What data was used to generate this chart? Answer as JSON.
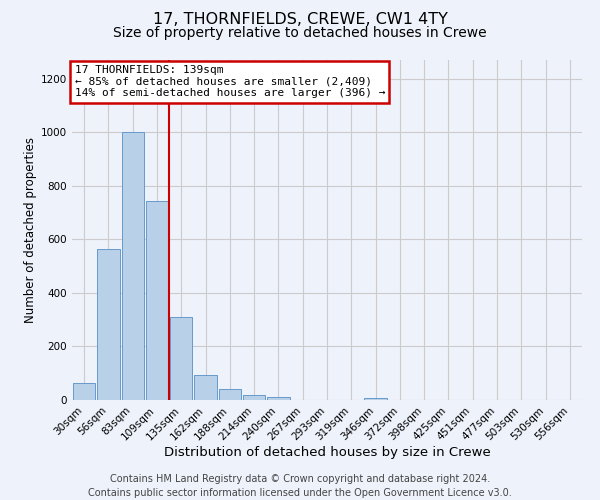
{
  "title": "17, THORNFIELDS, CREWE, CW1 4TY",
  "subtitle": "Size of property relative to detached houses in Crewe",
  "xlabel": "Distribution of detached houses by size in Crewe",
  "ylabel": "Number of detached properties",
  "footer_line1": "Contains HM Land Registry data © Crown copyright and database right 2024.",
  "footer_line2": "Contains public sector information licensed under the Open Government Licence v3.0.",
  "bar_labels": [
    "30sqm",
    "56sqm",
    "83sqm",
    "109sqm",
    "135sqm",
    "162sqm",
    "188sqm",
    "214sqm",
    "240sqm",
    "267sqm",
    "293sqm",
    "319sqm",
    "346sqm",
    "372sqm",
    "398sqm",
    "425sqm",
    "451sqm",
    "477sqm",
    "503sqm",
    "530sqm",
    "556sqm"
  ],
  "bar_values": [
    65,
    565,
    1000,
    745,
    310,
    95,
    40,
    20,
    10,
    0,
    0,
    0,
    8,
    0,
    0,
    0,
    0,
    0,
    0,
    0,
    0
  ],
  "bar_color": "#b8d0e8",
  "bar_edgecolor": "#6699cc",
  "vline_color": "#cc0000",
  "vline_index": 3.5,
  "annotation_box_text": "17 THORNFIELDS: 139sqm\n← 85% of detached houses are smaller (2,409)\n14% of semi-detached houses are larger (396) →",
  "annotation_box_facecolor": "#ffffff",
  "annotation_box_edgecolor": "#cc0000",
  "ylim": [
    0,
    1270
  ],
  "yticks": [
    0,
    200,
    400,
    600,
    800,
    1000,
    1200
  ],
  "grid_color": "#cccccc",
  "bg_color": "#eef2fa",
  "title_fontsize": 11.5,
  "subtitle_fontsize": 10,
  "xlabel_fontsize": 9.5,
  "ylabel_fontsize": 8.5,
  "tick_fontsize": 7.5,
  "annotation_fontsize": 8,
  "footer_fontsize": 7
}
